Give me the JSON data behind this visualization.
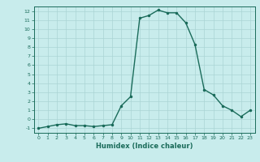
{
  "x": [
    0,
    1,
    2,
    3,
    4,
    5,
    6,
    7,
    8,
    9,
    10,
    11,
    12,
    13,
    14,
    15,
    16,
    17,
    18,
    19,
    20,
    21,
    22,
    23
  ],
  "y": [
    -1,
    -0.8,
    -0.6,
    -0.5,
    -0.7,
    -0.7,
    -0.8,
    -0.7,
    -0.6,
    1.5,
    2.5,
    11.2,
    11.5,
    12.1,
    11.8,
    11.8,
    10.7,
    8.3,
    3.3,
    2.7,
    1.5,
    1.0,
    0.3,
    1.0
  ],
  "xlabel": "Humidex (Indice chaleur)",
  "xlim": [
    -0.5,
    23.5
  ],
  "ylim": [
    -1.5,
    12.5
  ],
  "xticks": [
    0,
    1,
    2,
    3,
    4,
    5,
    6,
    7,
    8,
    9,
    10,
    11,
    12,
    13,
    14,
    15,
    16,
    17,
    18,
    19,
    20,
    21,
    22,
    23
  ],
  "yticks": [
    -1,
    0,
    1,
    2,
    3,
    4,
    5,
    6,
    7,
    8,
    9,
    10,
    11,
    12
  ],
  "line_color": "#1a6b5a",
  "bg_color": "#c8ecec",
  "grid_color": "#aad4d4",
  "tick_color": "#1a6b5a",
  "label_color": "#1a6b5a",
  "marker": ".",
  "marker_size": 3,
  "linewidth": 1.0
}
